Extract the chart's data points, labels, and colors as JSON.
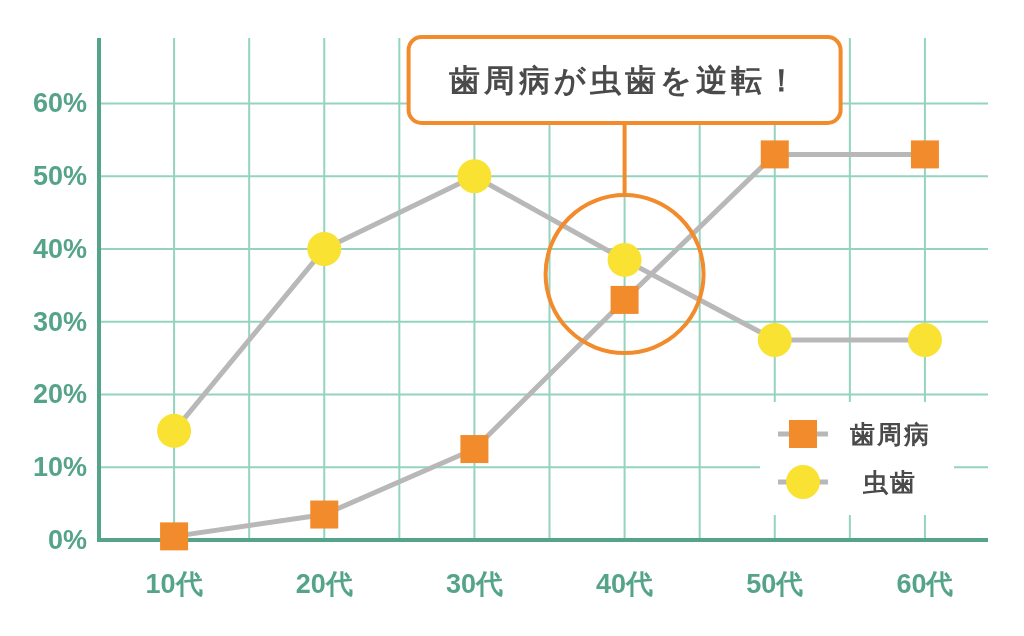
{
  "chart_data": {
    "type": "line",
    "categories": [
      "10代",
      "20代",
      "30代",
      "40代",
      "50代",
      "60代"
    ],
    "series": [
      {
        "name": "歯周病",
        "color": "#f28b2c",
        "marker": "square",
        "values": [
          0.5,
          3.5,
          12.5,
          33,
          53,
          53
        ]
      },
      {
        "name": "虫歯",
        "color": "#f9e231",
        "marker": "circle",
        "values": [
          15,
          40,
          50,
          38.5,
          27.5,
          27.5
        ]
      }
    ],
    "ylim": [
      0,
      69
    ],
    "yticks": [
      {
        "value": 0,
        "label": "0%"
      },
      {
        "value": 10,
        "label": "10%"
      },
      {
        "value": 20,
        "label": "20%"
      },
      {
        "value": 30,
        "label": "30%"
      },
      {
        "value": 40,
        "label": "40%"
      },
      {
        "value": 50,
        "label": "50%"
      },
      {
        "value": 60,
        "label": "60%"
      }
    ],
    "grid": true,
    "legend": "bottom right",
    "line_style": "solid",
    "annotations": [
      "歯周病が虫歯を逆転！"
    ]
  }
}
